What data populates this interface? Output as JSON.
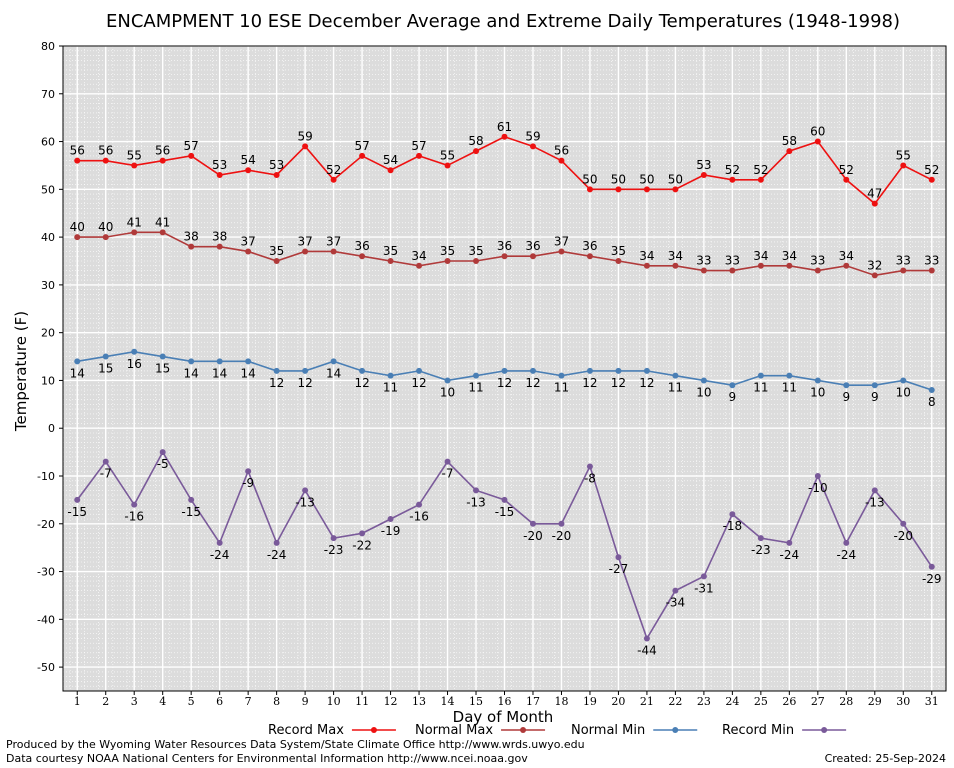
{
  "chart_data": {
    "type": "line",
    "title": "ENCAMPMENT 10 ESE December Average and Extreme Daily Temperatures (1948-1998)",
    "xlabel": "Day of Month",
    "ylabel": "Temperature (F)",
    "ylim": [
      -55,
      80
    ],
    "yticks": [
      80,
      70,
      60,
      50,
      40,
      30,
      20,
      10,
      0,
      -10,
      -20,
      -30,
      -40,
      -50
    ],
    "x": [
      1,
      2,
      3,
      4,
      5,
      6,
      7,
      8,
      9,
      10,
      11,
      12,
      13,
      14,
      15,
      16,
      17,
      18,
      19,
      20,
      21,
      22,
      23,
      24,
      25,
      26,
      27,
      28,
      29,
      30,
      31
    ],
    "grid": true,
    "legend_position": "bottom",
    "series": [
      {
        "name": "Record Max",
        "color": "#ee1111",
        "label_position": "above",
        "values": [
          56,
          56,
          55,
          56,
          57,
          53,
          54,
          53,
          59,
          52,
          57,
          54,
          57,
          55,
          58,
          61,
          59,
          56,
          50,
          50,
          50,
          50,
          53,
          52,
          52,
          58,
          60,
          52,
          47,
          55,
          52
        ]
      },
      {
        "name": "Normal Max",
        "color": "#b03a3a",
        "label_position": "above",
        "values": [
          40,
          40,
          41,
          41,
          38,
          38,
          37,
          35,
          37,
          37,
          36,
          35,
          34,
          35,
          35,
          36,
          36,
          37,
          36,
          35,
          34,
          34,
          33,
          33,
          34,
          34,
          33,
          34,
          32,
          33,
          33
        ]
      },
      {
        "name": "Normal Min",
        "color": "#4a7fb5",
        "label_position": "below",
        "values": [
          14,
          15,
          16,
          15,
          14,
          14,
          14,
          12,
          12,
          14,
          12,
          11,
          12,
          10,
          11,
          12,
          12,
          11,
          12,
          12,
          12,
          11,
          10,
          9,
          11,
          11,
          10,
          9,
          9,
          10,
          8
        ]
      },
      {
        "name": "Record Min",
        "color": "#7a5a9a",
        "label_position": "below",
        "values": [
          -15,
          -7,
          -16,
          -5,
          -15,
          -24,
          -9,
          -24,
          -13,
          -23,
          -22,
          -19,
          -16,
          -7,
          -13,
          -15,
          -20,
          -20,
          -8,
          -27,
          -44,
          -34,
          -31,
          -18,
          -23,
          -24,
          -10,
          -24,
          -13,
          -20,
          -29
        ]
      }
    ]
  },
  "footer": {
    "produced_by": "Produced by the Wyoming Water Resources Data System/State Climate Office http://www.wrds.uwyo.edu",
    "data_courtesy": "Data courtesy NOAA National Centers for Environmental Information http://www.ncei.noaa.gov",
    "created": "Created:  25-Sep-2024"
  }
}
